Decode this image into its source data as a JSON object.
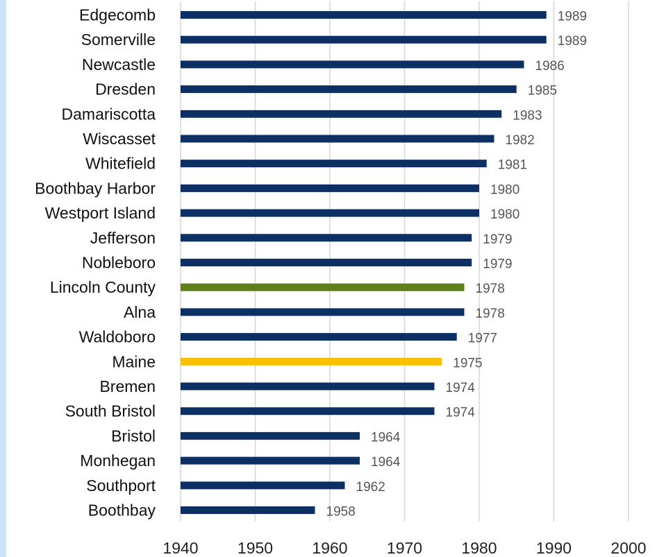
{
  "chart_data": {
    "type": "bar",
    "orientation": "horizontal",
    "title": "",
    "xlabel": "",
    "ylabel": "",
    "xlim": [
      1940,
      2000
    ],
    "x_ticks": [
      "1940",
      "1950",
      "1960",
      "1970",
      "1980",
      "1990",
      "2000"
    ],
    "grid": "vertical",
    "legend": "none",
    "categories": [
      "Edgecomb",
      "Somerville",
      "Newcastle",
      "Dresden",
      "Damariscotta",
      "Wiscasset",
      "Whitefield",
      "Boothbay Harbor",
      "Westport Island",
      "Jefferson",
      "Nobleboro",
      "Lincoln County",
      "Alna",
      "Waldoboro",
      "Maine",
      "Bremen",
      "South Bristol",
      "Bristol",
      "Monhegan",
      "Southport",
      "Boothbay"
    ],
    "values": [
      1989,
      1989,
      1986,
      1985,
      1983,
      1982,
      1981,
      1980,
      1980,
      1979,
      1979,
      1978,
      1978,
      1977,
      1975,
      1974,
      1974,
      1964,
      1964,
      1962,
      1958
    ],
    "data_labels": [
      "1989",
      "1989",
      "1986",
      "1985",
      "1983",
      "1982",
      "1981",
      "1980",
      "1980",
      "1979",
      "1979",
      "1978",
      "1978",
      "1977",
      "1975",
      "1974",
      "1974",
      "1964",
      "1964",
      "1962",
      "1958"
    ],
    "colors": {
      "default": "#0c3063",
      "Lincoln County": "#5e7f1a",
      "Maine": "#f9c000"
    }
  }
}
